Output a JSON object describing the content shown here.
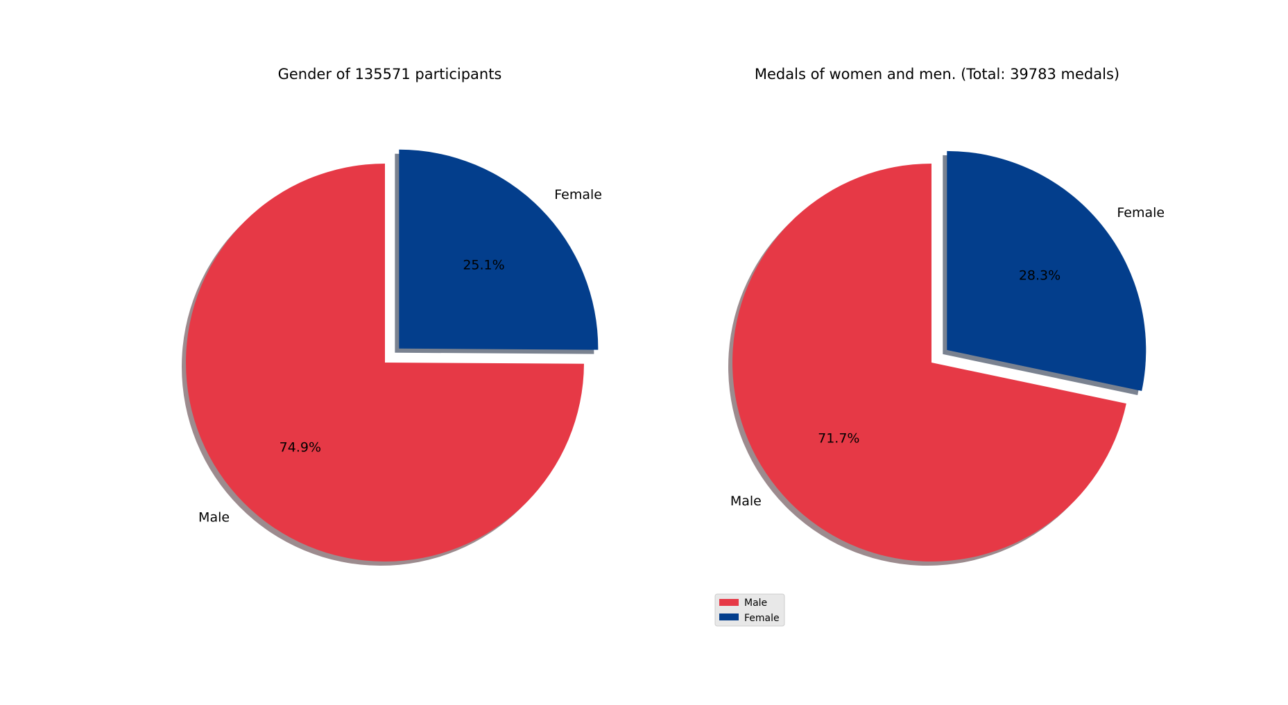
{
  "colors": {
    "male": "#e63946",
    "female": "#033e8c",
    "shadow_female": "#7a8290",
    "shadow_male": "#9c8b8e",
    "legend_bg": "#e8e8e8",
    "legend_border": "#cccccc"
  },
  "chart_data": [
    {
      "type": "pie",
      "title": "Gender of 135571 participants",
      "labels": [
        "Male",
        "Female"
      ],
      "values": [
        74.9,
        25.1
      ],
      "pct_labels": [
        "74.9%",
        "25.1%"
      ],
      "explode": [
        0,
        0.1
      ],
      "shadow": true,
      "legend": false
    },
    {
      "type": "pie",
      "title": "Medals of women and men. (Total: 39783 medals)",
      "labels": [
        "Male",
        "Female"
      ],
      "values": [
        71.7,
        28.3
      ],
      "pct_labels": [
        "71.7%",
        "28.3%"
      ],
      "explode": [
        0,
        0.1
      ],
      "shadow": true,
      "legend": true,
      "legend_entries": [
        "Male",
        "Female"
      ],
      "legend_location": "lower-left"
    }
  ]
}
